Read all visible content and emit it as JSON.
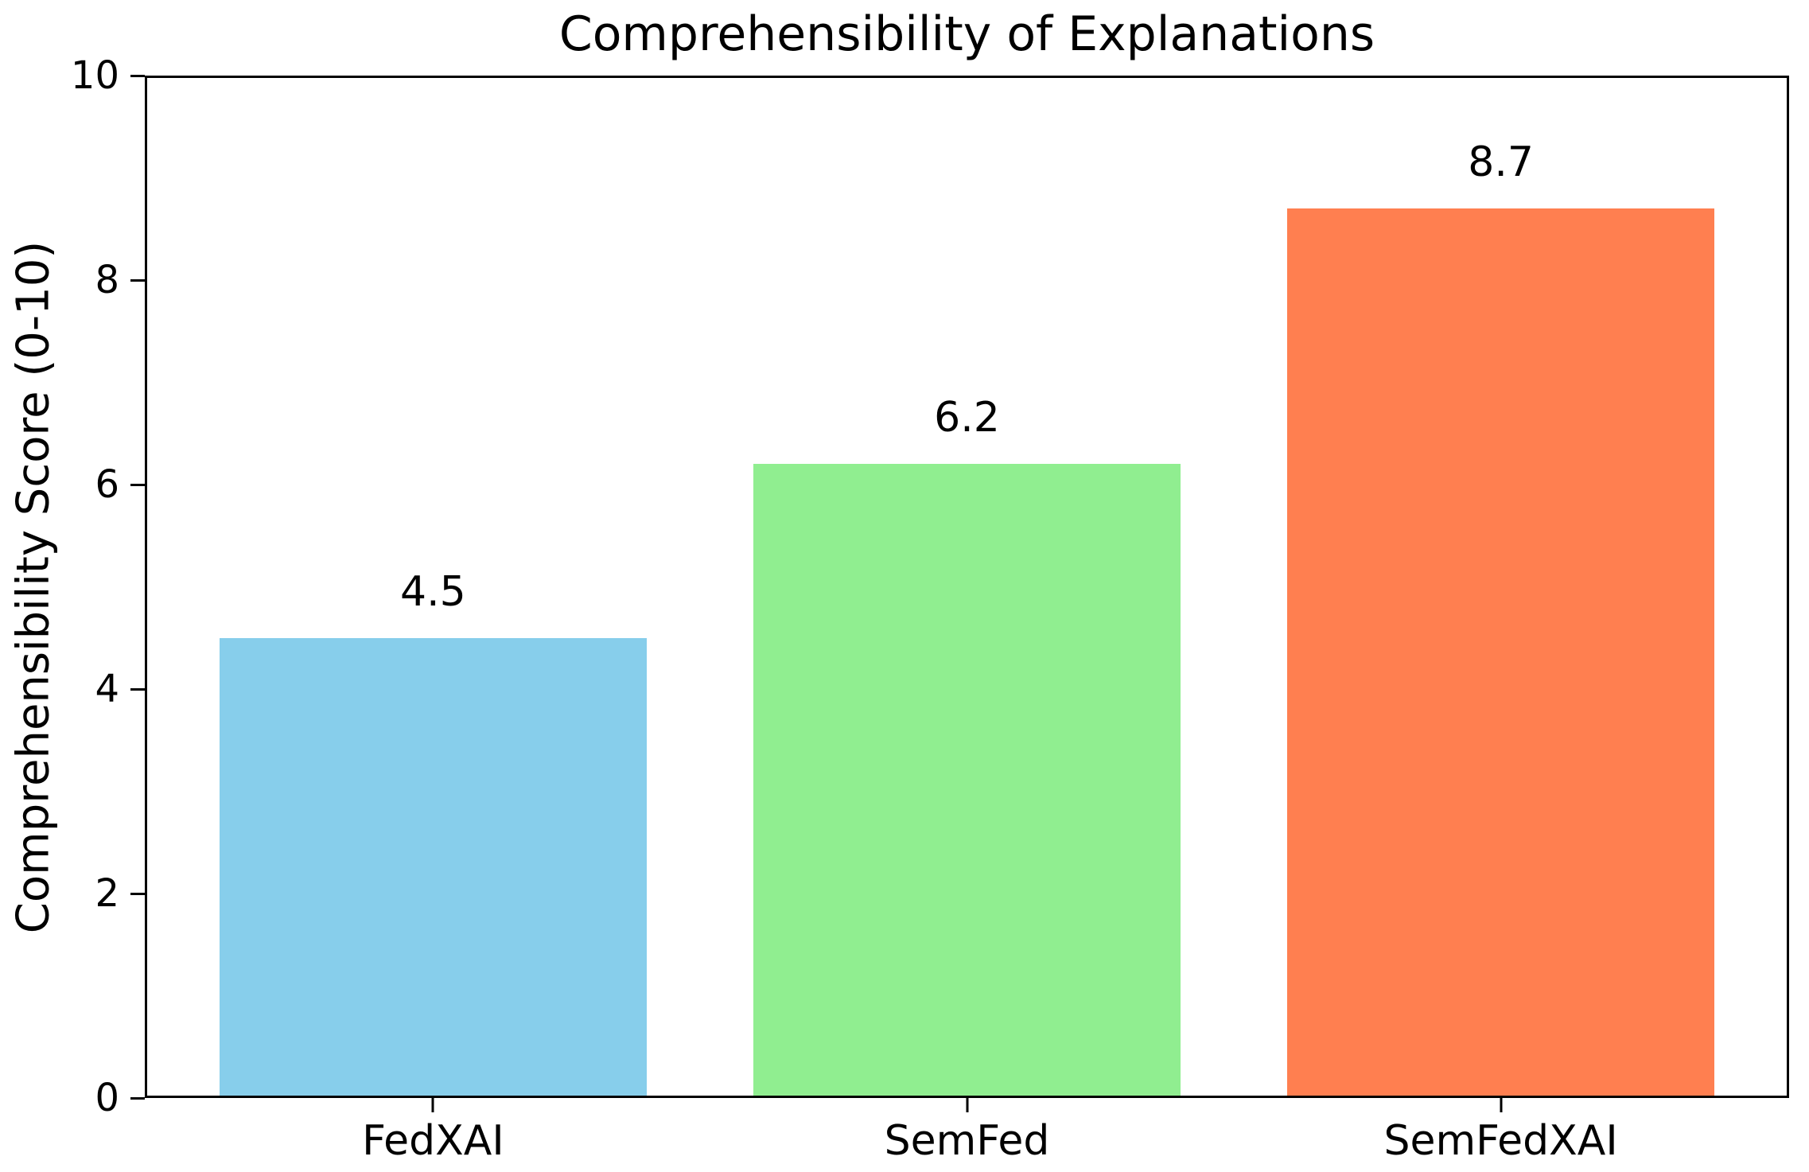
{
  "figure": {
    "background_color": "#ffffff",
    "axis_color": "#000000",
    "text_color": "#000000"
  },
  "chart_data": {
    "type": "bar",
    "title": "Comprehensibility of Explanations",
    "xlabel": "",
    "ylabel": "Comprehensibility Score (0-10)",
    "categories": [
      "FedXAI",
      "SemFed",
      "SemFedXAI"
    ],
    "values": [
      4.5,
      6.2,
      8.7
    ],
    "value_labels": [
      "4.5",
      "6.2",
      "8.7"
    ],
    "bar_colors": [
      "#87CEEB",
      "#90EE90",
      "#FF7F50"
    ],
    "ylim": [
      0,
      10
    ],
    "yticks": [
      0,
      2,
      4,
      6,
      8,
      10
    ],
    "grid": false,
    "legend_position": "none"
  }
}
